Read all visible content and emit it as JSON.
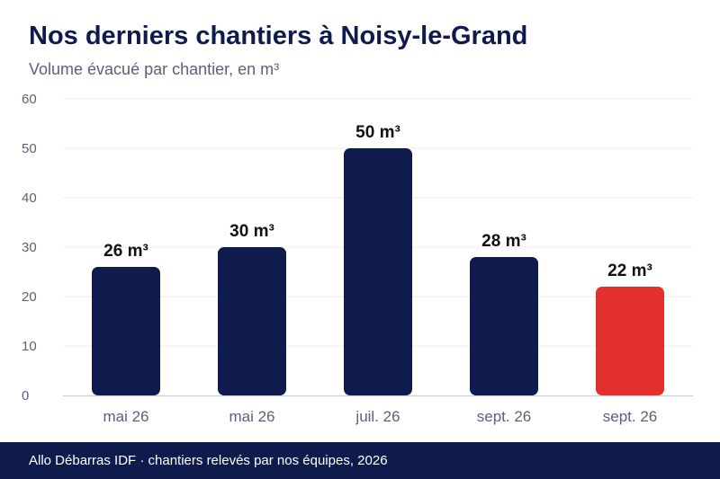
{
  "header": {
    "title": "Nos derniers chantiers à Noisy-le-Grand",
    "subtitle": "Volume évacué par chantier, en m³"
  },
  "footer": {
    "text": "Allo Débarras IDF · chantiers relevés par nos équipes, 2026"
  },
  "colors": {
    "bar": "#0f1b4c",
    "highlight_bar": "#e3302f",
    "grid": "#ececf1",
    "axis_text": "#5a6178",
    "label_text": "#111111"
  },
  "chart_data": {
    "type": "bar",
    "title": "Nos derniers chantiers à Noisy-le-Grand",
    "subtitle": "Volume évacué par chantier, en m³",
    "categories": [
      "mai 26",
      "mai 26",
      "juil. 26",
      "sept. 26",
      "sept. 26"
    ],
    "values": [
      26,
      30,
      50,
      28,
      22
    ],
    "data_labels": [
      "26 m³",
      "30 m³",
      "50 m³",
      "28 m³",
      "22 m³"
    ],
    "highlight_index": 4,
    "ylim": [
      0,
      60
    ],
    "yticks": [
      0,
      10,
      20,
      30,
      40,
      50,
      60
    ],
    "grid": true,
    "xlabel": "",
    "ylabel": ""
  }
}
